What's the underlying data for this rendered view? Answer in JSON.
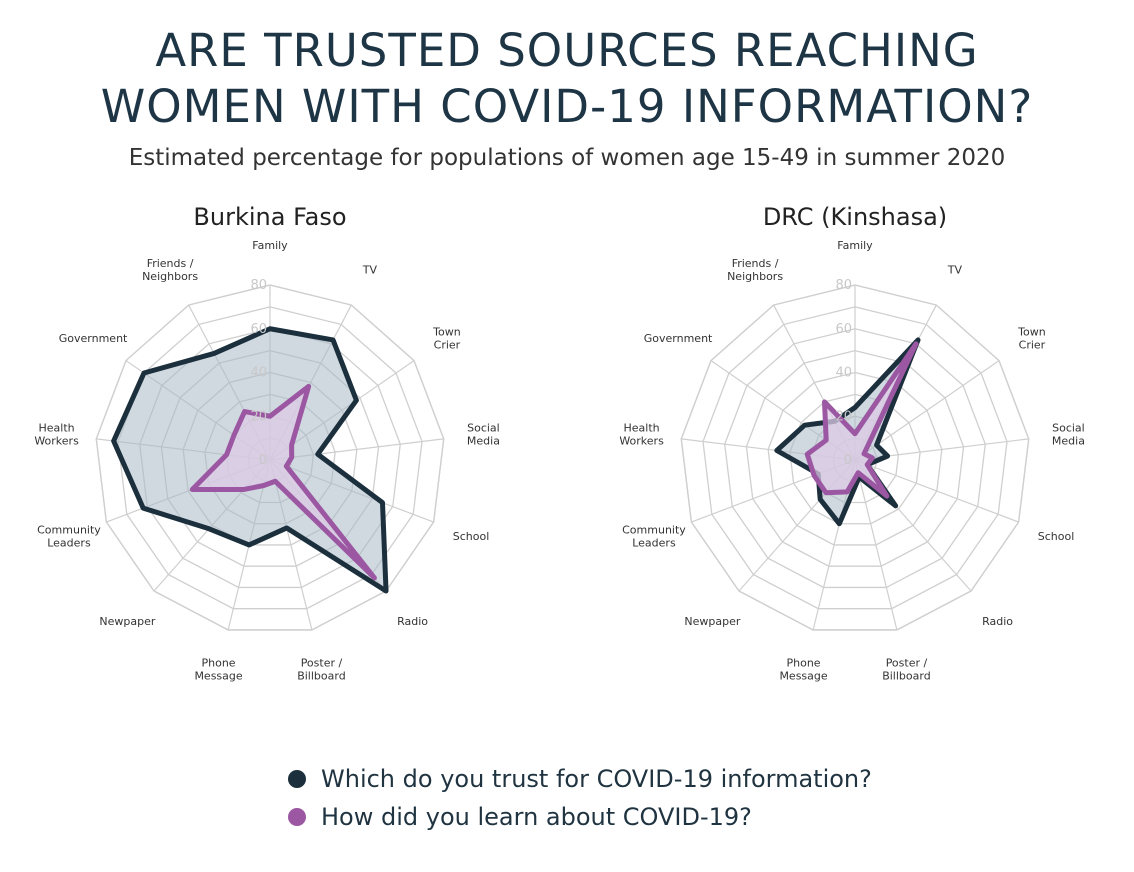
{
  "header": {
    "title_line1": "ARE TRUSTED SOURCES REACHING",
    "title_line2": "WOMEN WITH COVID-19 INFORMATION?",
    "subtitle": "Estimated percentage for populations of women age 15-49 in summer 2020"
  },
  "colors": {
    "trust": "#1b2f3d",
    "trust_fill": "#a9b8c6",
    "learn": "#9b57a2",
    "learn_fill": "#dccbe6",
    "grid": "#cfcfcf"
  },
  "legend": {
    "trust_label": "Which do you trust for COVID-19 information?",
    "learn_label": "How did you learn about COVID-19?"
  },
  "chart_data": [
    {
      "type": "radar",
      "title": "Burkina Faso",
      "categories": [
        "Family",
        "TV",
        "Town\nCrier",
        "Social\nMedia",
        "School",
        "Radio",
        "Poster /\nBillboard",
        "Phone\nMessage",
        "Newpaper",
        "Community\nLeaders",
        "Health\nWorkers",
        "Government",
        "Friends /\nNeighbors"
      ],
      "rlim": [
        0,
        80
      ],
      "rticks": [
        0,
        20,
        40,
        60,
        80
      ],
      "series": [
        {
          "name": "Which do you trust for COVID-19 information?",
          "key": "trust",
          "values": [
            60,
            62,
            48,
            22,
            55,
            80,
            32,
            40,
            42,
            62,
            72,
            70,
            55
          ]
        },
        {
          "name": "How did you learn about COVID-19?",
          "key": "learn",
          "values": [
            20,
            38,
            12,
            10,
            8,
            72,
            10,
            12,
            18,
            38,
            20,
            20,
            25
          ]
        }
      ]
    },
    {
      "type": "radar",
      "title": "DRC (Kinshasa)",
      "categories": [
        "Family",
        "TV",
        "Town\nCrier",
        "Social\nMedia",
        "School",
        "Radio",
        "Poster /\nBillboard",
        "Phone\nMessage",
        "Newpaper",
        "Community\nLeaders",
        "Health\nWorkers",
        "Government",
        "Friends /\nNeighbors"
      ],
      "rlim": [
        0,
        80
      ],
      "rticks": [
        0,
        20,
        40,
        60,
        80
      ],
      "series": [
        {
          "name": "Which do you trust for COVID-19 information?",
          "key": "trust",
          "values": [
            24,
            62,
            12,
            15,
            6,
            28,
            8,
            30,
            24,
            18,
            36,
            28,
            20
          ]
        },
        {
          "name": "How did you learn about COVID-19?",
          "key": "learn",
          "values": [
            12,
            60,
            5,
            8,
            6,
            22,
            6,
            15,
            20,
            20,
            22,
            16,
            30
          ]
        }
      ]
    }
  ]
}
